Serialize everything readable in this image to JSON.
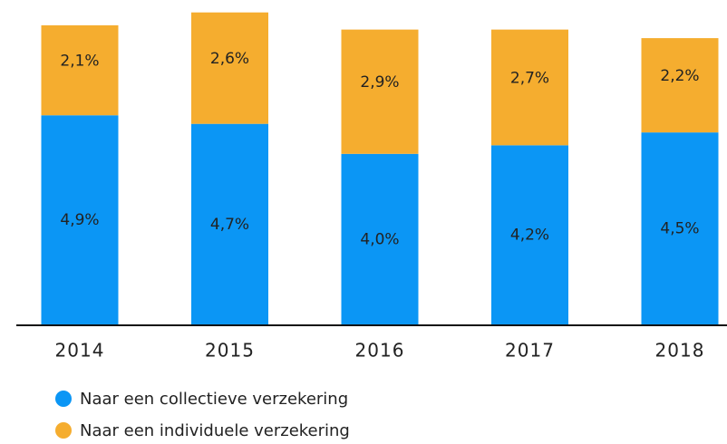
{
  "chart_data": {
    "type": "stacked_bar",
    "categories": [
      "2014",
      "2015",
      "2016",
      "2017",
      "2018"
    ],
    "series": [
      {
        "name": "Naar een collectieve verzekering",
        "color": "#0b96f5",
        "values": [
          4.9,
          4.7,
          4.0,
          4.2,
          4.5
        ],
        "value_labels": [
          "4,9%",
          "4,7%",
          "4,0%",
          "4,2%",
          "4,5%"
        ]
      },
      {
        "name": "Naar een individuele verzekering",
        "color": "#f5ad2f",
        "values": [
          2.1,
          2.6,
          2.9,
          2.7,
          2.2
        ],
        "value_labels": [
          "2,1%",
          "2,6%",
          "2,9%",
          "2,7%",
          "2,2%"
        ]
      }
    ]
  }
}
